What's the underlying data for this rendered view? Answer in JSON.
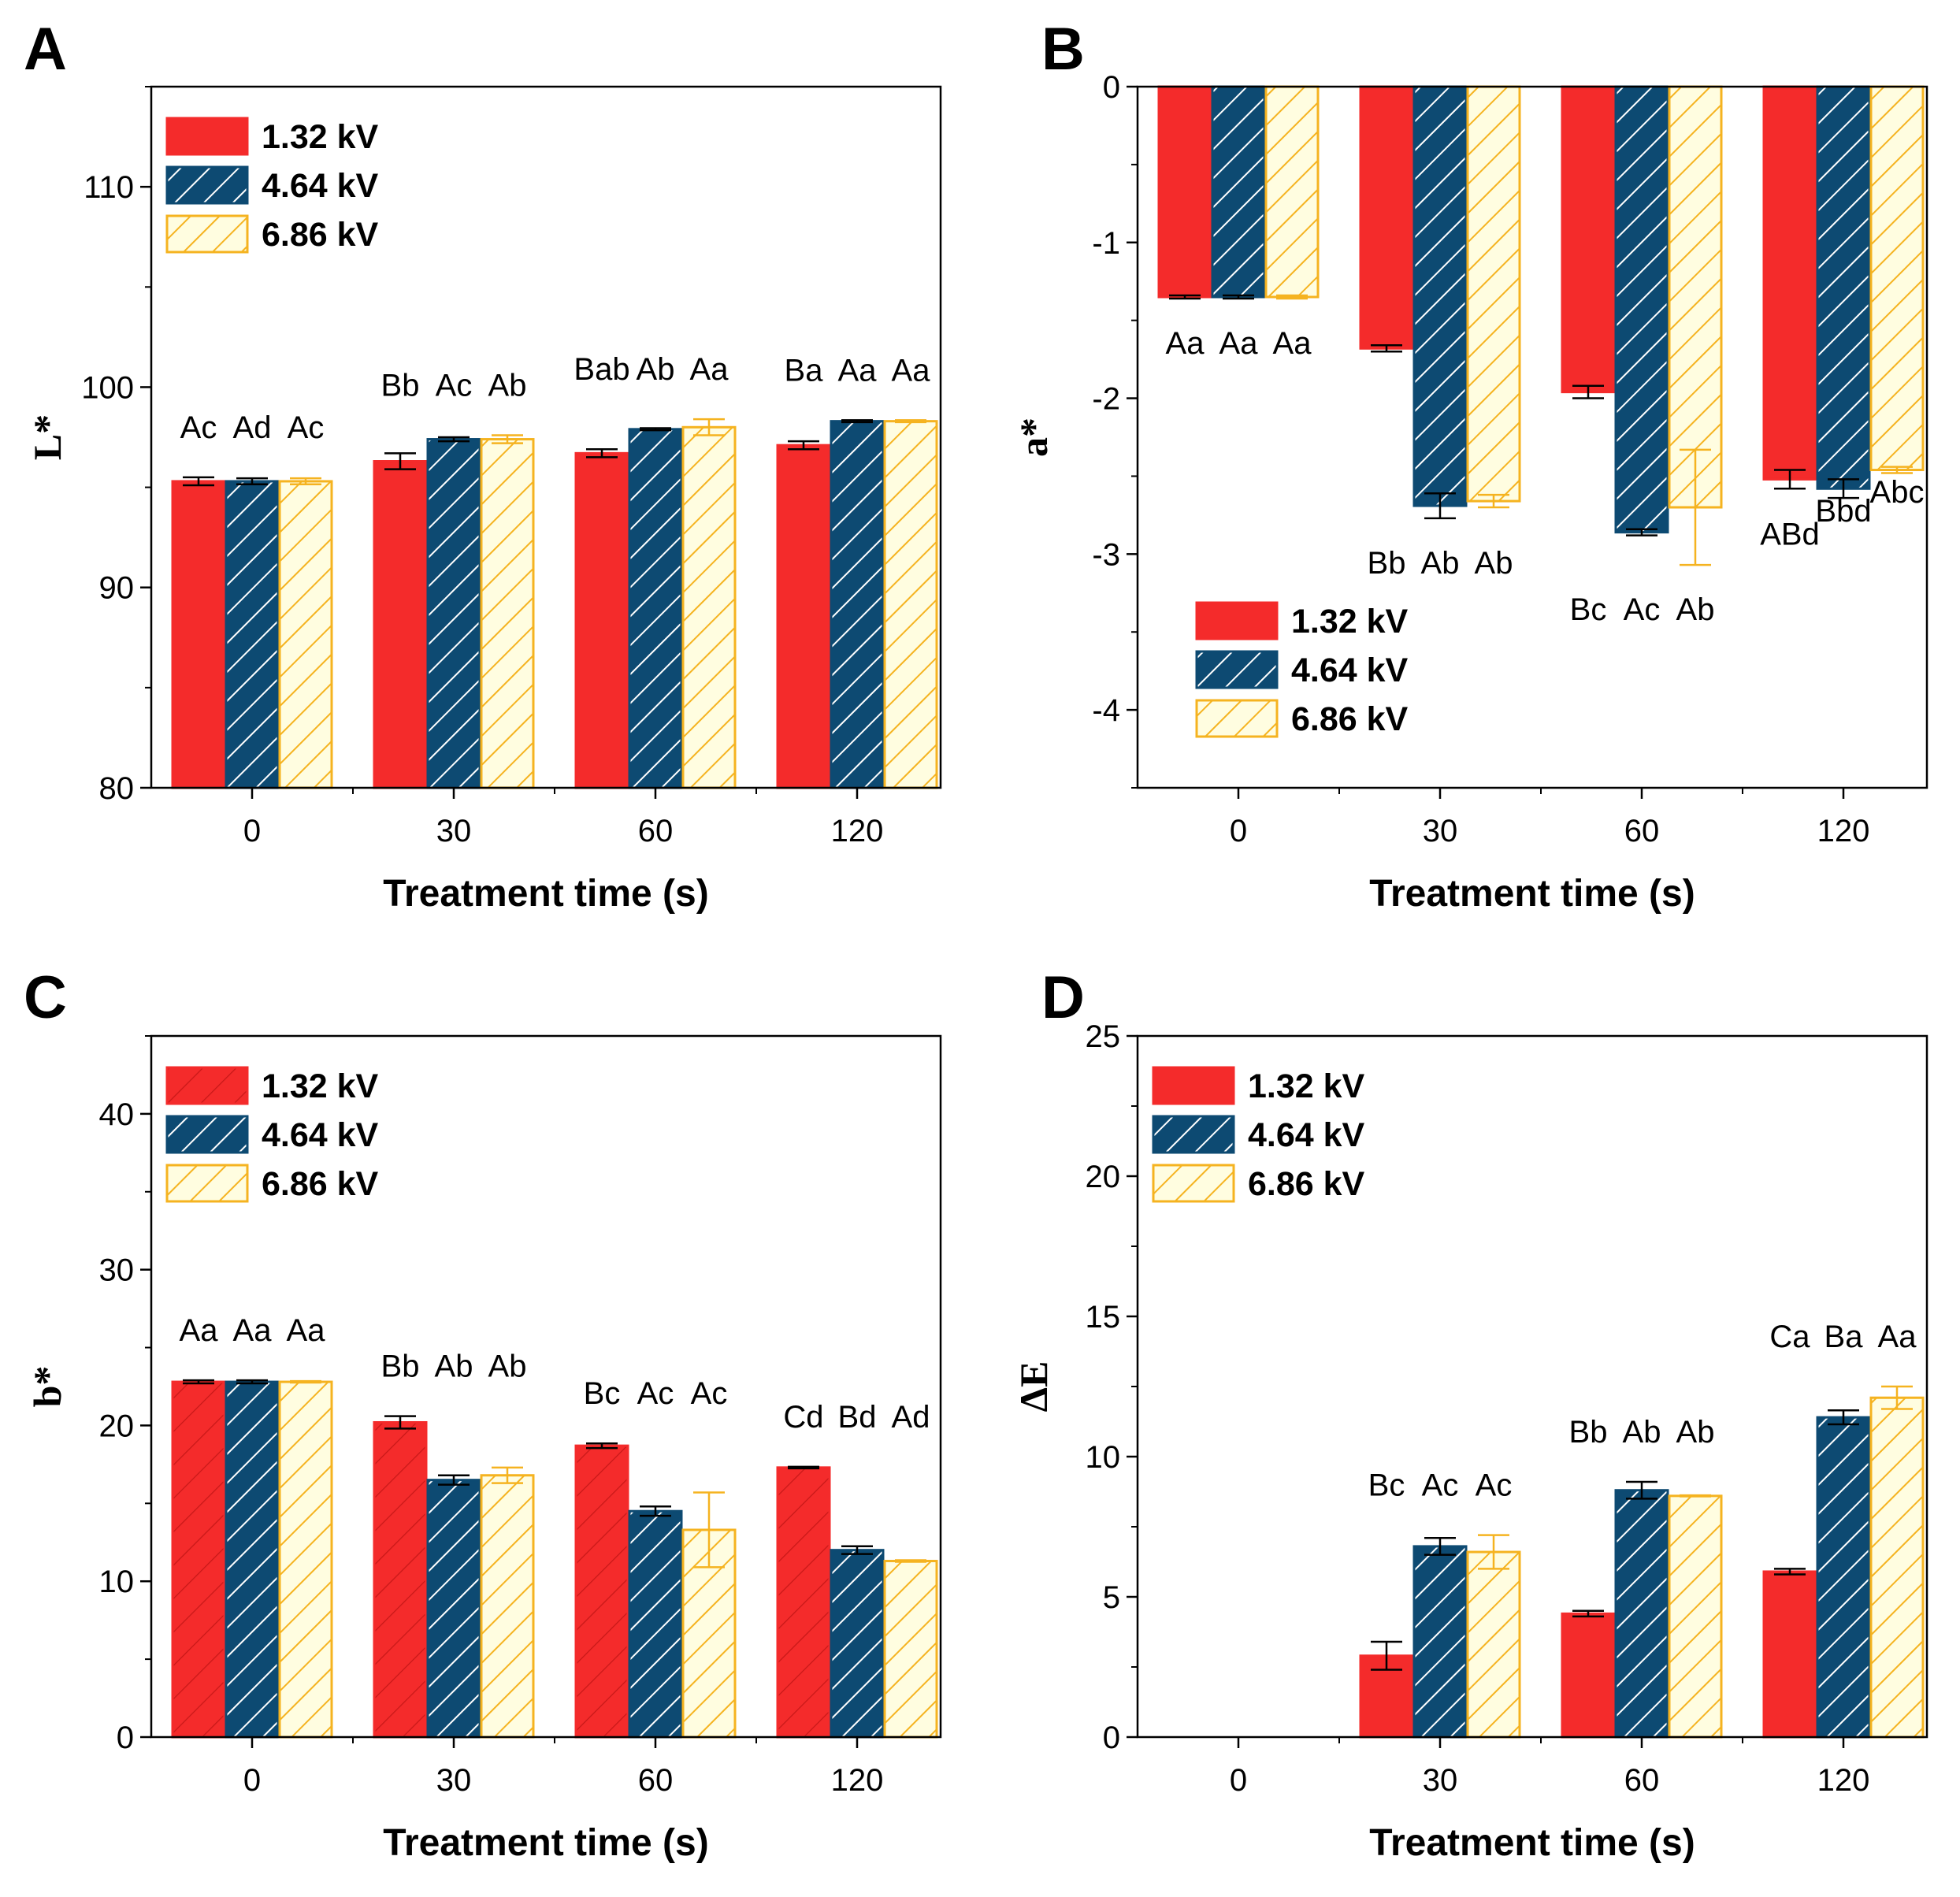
{
  "colors": {
    "red": "#f42b2b",
    "navy": "#0d4a72",
    "yellow": "#f5b320",
    "yellow_fill": "#fffde0"
  },
  "chart_data": [
    {
      "panel": "A",
      "type": "bar",
      "categories": [
        "0",
        "30",
        "60",
        "120"
      ],
      "xlabel": "Treatment time (s)",
      "ylabel": "L*",
      "ylim": [
        80,
        115
      ],
      "yticks": [
        "80",
        "90",
        "100",
        "110"
      ],
      "ytick_values": [
        80,
        90,
        100,
        110
      ],
      "legend_position": "top-left",
      "series": [
        {
          "name": "1.32 kV",
          "values": [
            95.3,
            96.3,
            96.7,
            97.1
          ],
          "errors": [
            0.2,
            0.4,
            0.2,
            0.2
          ],
          "fill": "solid"
        },
        {
          "name": "4.64 kV",
          "values": [
            95.3,
            97.4,
            97.9,
            98.3
          ],
          "errors": [
            0.15,
            0.1,
            0.05,
            0.05
          ],
          "fill": "navy-hatch"
        },
        {
          "name": "6.86 kV",
          "values": [
            95.3,
            97.4,
            98.0,
            98.3
          ],
          "errors": [
            0.15,
            0.2,
            0.4,
            0.05
          ],
          "fill": "yellow-hatch"
        }
      ],
      "annotations": [
        [
          "Ac",
          "Ad",
          "Ac"
        ],
        [
          "Bb",
          "Ac",
          "Ab"
        ],
        [
          "Bab",
          "Ab",
          "Aa"
        ],
        [
          "Ba",
          "Aa",
          "Aa"
        ]
      ]
    },
    {
      "panel": "B",
      "type": "bar",
      "categories": [
        "0",
        "30",
        "60",
        "120"
      ],
      "xlabel": "Treatment time (s)",
      "ylabel": "a*",
      "ylim": [
        -4.5,
        0
      ],
      "yticks": [
        "0",
        "-1",
        "-2",
        "-3",
        "-4"
      ],
      "ytick_values": [
        0,
        -1,
        -2,
        -3,
        -4
      ],
      "legend_position": "bottom-left",
      "series": [
        {
          "name": "1.32 kV",
          "values": [
            -1.35,
            -1.68,
            -1.96,
            -2.52
          ],
          "errors": [
            0.01,
            0.02,
            0.04,
            0.06
          ],
          "fill": "solid"
        },
        {
          "name": "4.64 kV",
          "values": [
            -1.35,
            -2.69,
            -2.86,
            -2.58
          ],
          "errors": [
            0.01,
            0.08,
            0.02,
            0.06
          ],
          "fill": "navy-hatch"
        },
        {
          "name": "6.86 kV",
          "values": [
            -1.35,
            -2.66,
            -2.7,
            -2.46
          ],
          "errors": [
            0.01,
            0.04,
            0.37,
            0.02
          ],
          "fill": "yellow-hatch"
        }
      ],
      "annotations": [
        [
          "Aa",
          "Aa",
          "Aa"
        ],
        [
          "Bb",
          "Ab",
          "Ab"
        ],
        [
          "Bc",
          "Ac",
          "Ab"
        ],
        [
          "ABd",
          "Bbd",
          "Abc"
        ]
      ]
    },
    {
      "panel": "C",
      "type": "bar",
      "categories": [
        "0",
        "30",
        "60",
        "120"
      ],
      "xlabel": "Treatment time (s)",
      "ylabel": "b*",
      "ylim": [
        0,
        45
      ],
      "yticks": [
        "0",
        "10",
        "20",
        "30",
        "40"
      ],
      "ytick_values": [
        0,
        10,
        20,
        30,
        40
      ],
      "legend_position": "top-left",
      "series": [
        {
          "name": "1.32 kV",
          "values": [
            22.8,
            20.2,
            18.7,
            17.3
          ],
          "errors": [
            0.1,
            0.4,
            0.15,
            0.05
          ],
          "fill": "red-hatch"
        },
        {
          "name": "4.64 kV",
          "values": [
            22.8,
            16.5,
            14.5,
            12.0
          ],
          "errors": [
            0.1,
            0.3,
            0.3,
            0.25
          ],
          "fill": "navy-hatch"
        },
        {
          "name": "6.86 kV",
          "values": [
            22.8,
            16.8,
            13.3,
            11.3
          ],
          "errors": [
            0.05,
            0.5,
            2.4,
            0.05
          ],
          "fill": "yellow-hatch"
        }
      ],
      "annotations": [
        [
          "Aa",
          "Aa",
          "Aa"
        ],
        [
          "Bb",
          "Ab",
          "Ab"
        ],
        [
          "Bc",
          "Ac",
          "Ac"
        ],
        [
          "Cd",
          "Bd",
          "Ad"
        ]
      ]
    },
    {
      "panel": "D",
      "type": "bar",
      "categories": [
        "0",
        "30",
        "60",
        "120"
      ],
      "xlabel": "Treatment time (s)",
      "ylabel": "ΔE",
      "ylim": [
        0,
        25
      ],
      "yticks": [
        "0",
        "5",
        "10",
        "15",
        "20",
        "25"
      ],
      "ytick_values": [
        0,
        5,
        10,
        15,
        20,
        25
      ],
      "legend_position": "top-left",
      "series": [
        {
          "name": "1.32 kV",
          "values": [
            0,
            2.9,
            4.4,
            5.9
          ],
          "errors": [
            0,
            0.5,
            0.1,
            0.1
          ],
          "fill": "solid"
        },
        {
          "name": "4.64 kV",
          "values": [
            0,
            6.8,
            8.8,
            11.4
          ],
          "errors": [
            0,
            0.3,
            0.3,
            0.25
          ],
          "fill": "navy-hatch"
        },
        {
          "name": "6.86 kV",
          "values": [
            0,
            6.6,
            8.6,
            12.1
          ],
          "errors": [
            0,
            0.6,
            0.02,
            0.4
          ],
          "fill": "yellow-hatch"
        }
      ],
      "annotations": [
        null,
        [
          "Bc",
          "Ac",
          "Ac"
        ],
        [
          "Bb",
          "Ab",
          "Ab"
        ],
        [
          "Ca",
          "Ba",
          "Aa"
        ]
      ]
    }
  ]
}
